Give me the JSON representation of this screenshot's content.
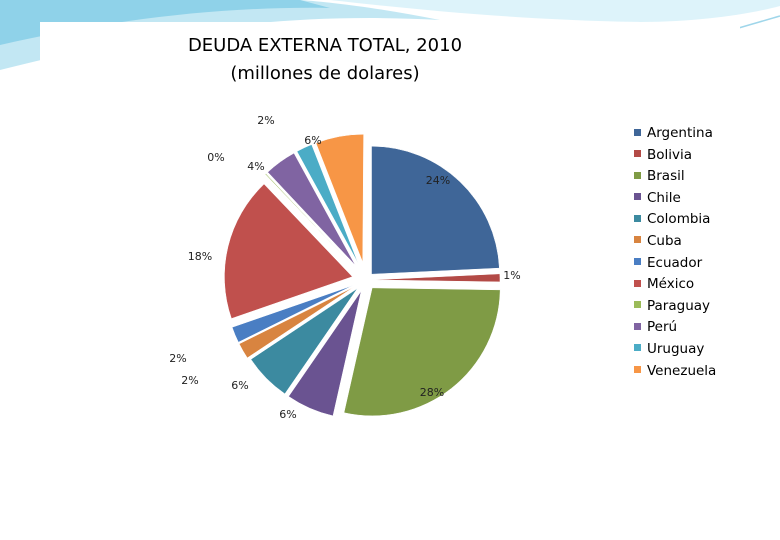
{
  "chart_data": {
    "type": "pie",
    "title": "DEUDA EXTERNA TOTAL, 2010",
    "subtitle": "(millones de dolares)",
    "legend_position": "right",
    "series": [
      {
        "values": [
          24,
          1,
          28,
          6,
          6,
          2,
          2,
          18,
          0,
          4,
          2,
          6
        ],
        "labels": [
          "24%",
          "1%",
          "28%",
          "6%",
          "6%",
          "2%",
          "2%",
          "18%",
          "0%",
          "4%",
          "2%",
          "6%"
        ]
      }
    ],
    "categories": [
      "Argentina",
      "Bolivia",
      "Brasil",
      "Chile",
      "Colombia",
      "Cuba",
      "Ecuador",
      "México",
      "Paraguay",
      "Perú",
      "Uruguay",
      "Venezuela"
    ],
    "colors": [
      "#3F6698",
      "#B34A46",
      "#7F9B45",
      "#6A5391",
      "#3C8AA0",
      "#D88440",
      "#4A7EC3",
      "#C0504D",
      "#9BBB59",
      "#8064A2",
      "#4BACC6",
      "#F79646"
    ]
  }
}
